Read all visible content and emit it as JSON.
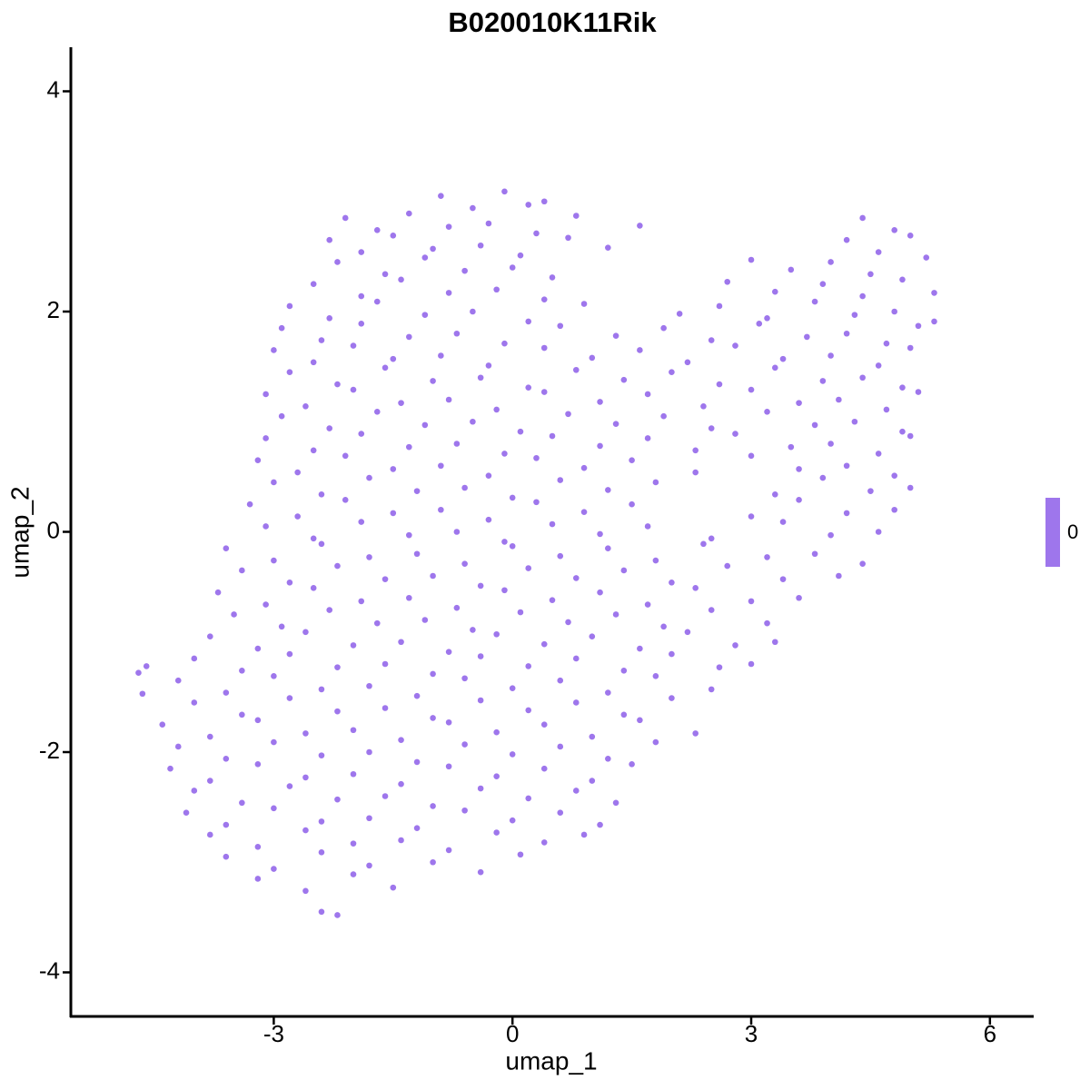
{
  "chart_data": {
    "type": "scatter",
    "title": "B020010K11Rik",
    "x_label": "umap_1",
    "y_label": "umap_2",
    "color": "#9e76ec",
    "xlim": [
      -5.55,
      6.55
    ],
    "ylim": [
      -4.4,
      4.4
    ],
    "xticks": [
      -3,
      0,
      3,
      6
    ],
    "yticks": [
      -4,
      -2,
      0,
      2,
      4
    ],
    "legend_ticks": [
      0
    ],
    "x": [
      -0.9,
      -0.5,
      -0.1,
      0.2,
      0.4,
      -2.1,
      -1.7,
      -1.3,
      -0.8,
      -0.3,
      0.3,
      0.8,
      1.6,
      4.4,
      4.8,
      -2.3,
      -1.9,
      -1.5,
      -1.0,
      -0.4,
      0.1,
      0.7,
      1.2,
      4.2,
      4.6,
      5.0,
      -2.2,
      -1.6,
      -1.1,
      -0.6,
      0.0,
      0.5,
      3.0,
      3.5,
      4.0,
      4.5,
      5.2,
      -2.5,
      -1.9,
      -1.4,
      -0.8,
      -0.2,
      0.4,
      2.7,
      3.3,
      3.9,
      4.4,
      4.9,
      5.3,
      -2.8,
      -2.3,
      -1.7,
      -1.1,
      -0.5,
      0.2,
      0.9,
      2.1,
      2.6,
      3.2,
      3.8,
      4.3,
      4.8,
      5.3,
      -2.9,
      -2.4,
      -1.9,
      -1.3,
      -0.7,
      -0.1,
      0.6,
      1.3,
      1.9,
      2.5,
      3.1,
      3.7,
      4.2,
      4.7,
      5.1,
      -3.0,
      -2.5,
      -2.0,
      -1.5,
      -0.9,
      -0.3,
      0.4,
      1.0,
      1.6,
      2.2,
      2.8,
      3.4,
      4.0,
      4.6,
      5.0,
      -2.8,
      -2.2,
      -1.6,
      -1.0,
      -0.4,
      0.2,
      0.8,
      1.4,
      2.0,
      2.6,
      3.3,
      3.9,
      4.4,
      4.9,
      -3.1,
      -2.6,
      -2.0,
      -1.4,
      -0.8,
      -0.2,
      0.4,
      1.1,
      1.7,
      2.4,
      3.0,
      3.6,
      4.1,
      4.7,
      5.1,
      -2.9,
      -2.3,
      -1.7,
      -1.1,
      -0.5,
      0.1,
      0.7,
      1.3,
      1.9,
      2.5,
      3.2,
      3.8,
      4.3,
      4.9,
      -3.1,
      -2.5,
      -1.9,
      -1.3,
      -0.7,
      -0.1,
      0.5,
      1.1,
      1.7,
      2.3,
      2.8,
      3.5,
      4.0,
      4.6,
      5.0,
      -3.2,
      -2.7,
      -2.1,
      -1.5,
      -0.9,
      -0.3,
      0.3,
      0.9,
      1.5,
      2.3,
      3.0,
      3.6,
      4.2,
      4.8,
      -3.0,
      -2.4,
      -1.8,
      -1.2,
      -0.6,
      0.0,
      0.6,
      1.2,
      1.8,
      3.3,
      3.9,
      4.5,
      5.0,
      -3.3,
      -2.7,
      -2.1,
      -1.5,
      -0.9,
      -0.3,
      0.3,
      0.9,
      1.5,
      3.0,
      3.6,
      4.2,
      4.8,
      -3.1,
      -2.5,
      -1.9,
      -1.3,
      -0.7,
      -0.1,
      0.5,
      1.1,
      1.7,
      2.5,
      3.4,
      4.0,
      4.6,
      -3.6,
      -3.0,
      -2.4,
      -1.8,
      -1.2,
      -0.6,
      0.0,
      0.6,
      1.2,
      1.8,
      2.4,
      3.2,
      3.8,
      4.4,
      -3.4,
      -2.8,
      -2.2,
      -1.6,
      -1.0,
      -0.4,
      0.2,
      0.8,
      1.4,
      2.0,
      2.7,
      3.4,
      4.1,
      -3.7,
      -3.1,
      -2.5,
      -1.9,
      -1.3,
      -0.7,
      -0.1,
      0.5,
      1.1,
      1.7,
      2.3,
      3.0,
      3.6,
      -3.5,
      -2.9,
      -2.3,
      -1.7,
      -1.1,
      -0.5,
      0.1,
      0.7,
      1.3,
      1.9,
      2.5,
      3.2,
      -3.8,
      -3.2,
      -2.6,
      -2.0,
      -1.4,
      -0.8,
      -0.2,
      0.4,
      1.0,
      1.6,
      2.2,
      2.8,
      3.3,
      -4.0,
      -3.4,
      -2.8,
      -2.2,
      -1.6,
      -1.0,
      -0.4,
      0.2,
      0.8,
      1.4,
      2.0,
      2.6,
      3.0,
      -4.7,
      -4.6,
      -4.65,
      -4.2,
      -3.6,
      -3.0,
      -2.4,
      -1.8,
      -1.2,
      -0.6,
      0.0,
      0.6,
      1.2,
      1.8,
      2.5,
      -4.0,
      -3.4,
      -2.8,
      -2.2,
      -1.6,
      -1.0,
      -0.4,
      0.2,
      0.8,
      1.4,
      2.0,
      -4.4,
      -3.8,
      -3.2,
      -2.6,
      -2.0,
      -1.4,
      -0.8,
      -0.2,
      0.4,
      1.0,
      1.6,
      2.3,
      -4.2,
      -3.6,
      -3.0,
      -2.4,
      -1.8,
      -1.2,
      -0.6,
      0.0,
      0.6,
      1.2,
      1.8,
      -4.3,
      -3.8,
      -3.2,
      -2.6,
      -2.0,
      -1.4,
      -0.8,
      -0.2,
      0.4,
      1.0,
      1.5,
      -4.0,
      -3.4,
      -2.8,
      -2.2,
      -1.6,
      -1.0,
      -0.4,
      0.2,
      0.8,
      1.3,
      -4.1,
      -3.6,
      -3.0,
      -2.4,
      -1.8,
      -1.2,
      -0.6,
      0.0,
      0.6,
      1.1,
      -3.8,
      -3.2,
      -2.6,
      -2.0,
      -1.4,
      -0.8,
      -0.2,
      0.4,
      0.9,
      -3.6,
      -3.0,
      -2.4,
      -1.8,
      -1.0,
      -0.4,
      0.1,
      -3.2,
      -2.6,
      -2.0,
      -1.5,
      -2.4,
      -2.2
    ],
    "y": [
      3.05,
      2.94,
      3.09,
      2.97,
      3.0,
      2.85,
      2.74,
      2.89,
      2.77,
      2.8,
      2.71,
      2.87,
      2.78,
      2.85,
      2.74,
      2.65,
      2.54,
      2.69,
      2.57,
      2.6,
      2.51,
      2.67,
      2.58,
      2.65,
      2.54,
      2.69,
      2.45,
      2.34,
      2.49,
      2.37,
      2.4,
      2.31,
      2.47,
      2.38,
      2.45,
      2.34,
      2.49,
      2.25,
      2.14,
      2.29,
      2.17,
      2.2,
      2.11,
      2.27,
      2.18,
      2.25,
      2.14,
      2.29,
      2.17,
      2.05,
      1.94,
      2.09,
      1.97,
      2.0,
      1.91,
      2.07,
      1.98,
      2.05,
      1.94,
      2.09,
      1.97,
      2.0,
      1.91,
      1.85,
      1.74,
      1.89,
      1.77,
      1.8,
      1.71,
      1.87,
      1.78,
      1.85,
      1.74,
      1.89,
      1.77,
      1.8,
      1.71,
      1.87,
      1.65,
      1.54,
      1.69,
      1.57,
      1.6,
      1.51,
      1.67,
      1.58,
      1.65,
      1.54,
      1.69,
      1.57,
      1.6,
      1.51,
      1.67,
      1.45,
      1.34,
      1.49,
      1.37,
      1.4,
      1.31,
      1.47,
      1.38,
      1.45,
      1.34,
      1.49,
      1.37,
      1.4,
      1.31,
      1.25,
      1.14,
      1.29,
      1.17,
      1.2,
      1.11,
      1.27,
      1.18,
      1.25,
      1.14,
      1.29,
      1.17,
      1.2,
      1.11,
      1.27,
      1.05,
      0.94,
      1.09,
      0.97,
      1.0,
      0.91,
      1.07,
      0.98,
      1.05,
      0.94,
      1.09,
      0.97,
      1.0,
      0.91,
      0.85,
      0.74,
      0.89,
      0.77,
      0.8,
      0.71,
      0.87,
      0.78,
      0.85,
      0.74,
      0.89,
      0.77,
      0.8,
      0.71,
      0.87,
      0.65,
      0.54,
      0.69,
      0.57,
      0.6,
      0.51,
      0.67,
      0.58,
      0.65,
      0.54,
      0.69,
      0.57,
      0.6,
      0.51,
      0.45,
      0.34,
      0.49,
      0.37,
      0.4,
      0.31,
      0.47,
      0.38,
      0.45,
      0.34,
      0.49,
      0.37,
      0.4,
      0.25,
      0.14,
      0.29,
      0.17,
      0.2,
      0.11,
      0.27,
      0.18,
      0.25,
      0.14,
      0.29,
      0.17,
      0.2,
      0.05,
      -0.06,
      0.09,
      -0.03,
      0.0,
      -0.09,
      0.07,
      -0.02,
      0.05,
      -0.06,
      0.09,
      -0.03,
      0.0,
      -0.15,
      -0.26,
      -0.11,
      -0.23,
      -0.2,
      -0.29,
      -0.13,
      -0.22,
      -0.15,
      -0.26,
      -0.11,
      -0.23,
      -0.2,
      -0.29,
      -0.35,
      -0.46,
      -0.31,
      -0.43,
      -0.4,
      -0.49,
      -0.33,
      -0.42,
      -0.35,
      -0.46,
      -0.31,
      -0.43,
      -0.4,
      -0.55,
      -0.66,
      -0.51,
      -0.63,
      -0.6,
      -0.69,
      -0.53,
      -0.62,
      -0.55,
      -0.66,
      -0.51,
      -0.63,
      -0.6,
      -0.75,
      -0.86,
      -0.71,
      -0.83,
      -0.8,
      -0.89,
      -0.73,
      -0.82,
      -0.75,
      -0.86,
      -0.71,
      -0.83,
      -0.95,
      -1.06,
      -0.91,
      -1.03,
      -1.0,
      -1.09,
      -0.93,
      -1.02,
      -0.95,
      -1.06,
      -0.91,
      -1.03,
      -1.0,
      -1.15,
      -1.26,
      -1.11,
      -1.23,
      -1.2,
      -1.29,
      -1.13,
      -1.22,
      -1.15,
      -1.26,
      -1.11,
      -1.23,
      -1.2,
      -1.28,
      -1.22,
      -1.47,
      -1.35,
      -1.46,
      -1.31,
      -1.43,
      -1.4,
      -1.49,
      -1.33,
      -1.42,
      -1.35,
      -1.46,
      -1.31,
      -1.43,
      -1.55,
      -1.66,
      -1.51,
      -1.63,
      -1.6,
      -1.69,
      -1.53,
      -1.62,
      -1.55,
      -1.66,
      -1.51,
      -1.75,
      -1.86,
      -1.71,
      -1.83,
      -1.8,
      -1.89,
      -1.73,
      -1.82,
      -1.75,
      -1.86,
      -1.71,
      -1.83,
      -1.95,
      -2.06,
      -1.91,
      -2.03,
      -2.0,
      -2.09,
      -1.93,
      -2.02,
      -1.95,
      -2.06,
      -1.91,
      -2.15,
      -2.26,
      -2.11,
      -2.23,
      -2.2,
      -2.29,
      -2.13,
      -2.22,
      -2.15,
      -2.26,
      -2.11,
      -2.35,
      -2.46,
      -2.31,
      -2.43,
      -2.4,
      -2.49,
      -2.33,
      -2.42,
      -2.35,
      -2.46,
      -2.55,
      -2.66,
      -2.51,
      -2.63,
      -2.6,
      -2.69,
      -2.53,
      -2.62,
      -2.55,
      -2.66,
      -2.75,
      -2.86,
      -2.71,
      -2.83,
      -2.8,
      -2.89,
      -2.73,
      -2.82,
      -2.75,
      -2.95,
      -3.06,
      -2.91,
      -3.03,
      -3.0,
      -3.09,
      -2.93,
      -3.15,
      -3.26,
      -3.11,
      -3.23,
      -3.45,
      -3.48
    ]
  }
}
